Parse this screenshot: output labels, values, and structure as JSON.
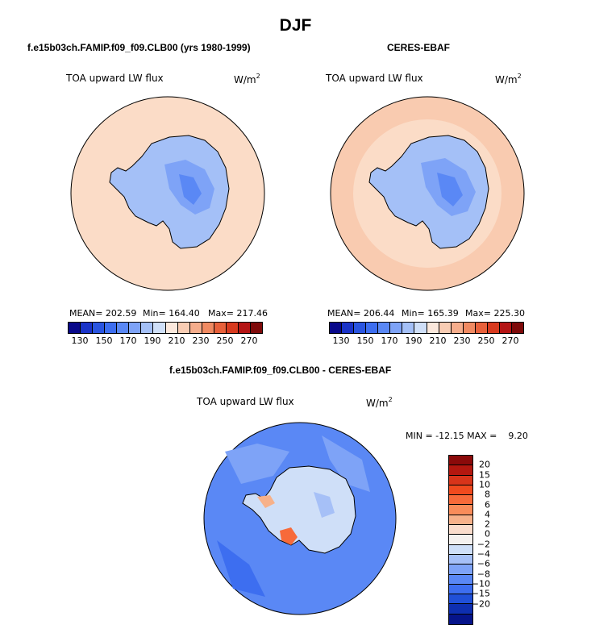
{
  "title": "DJF",
  "panels": {
    "model": {
      "subtitle": "f.e15b03ch.FAMIP.f09_f09.CLB00 (yrs 1980-1999)",
      "var_label": "TOA upward LW flux",
      "units": "W/m",
      "units_exp": "2",
      "mean_label": "MEAN= 202.59",
      "min_label": "Min= 164.40",
      "max_label": "Max= 217.46"
    },
    "obs": {
      "subtitle": "CERES-EBAF",
      "var_label": "TOA upward LW flux",
      "units": "W/m",
      "units_exp": "2",
      "mean_label": "MEAN= 206.44",
      "min_label": "Min= 165.39",
      "max_label": "Max= 225.30"
    },
    "diff": {
      "subtitle": "f.e15b03ch.FAMIP.f09_f09.CLB00 - CERES-EBAF",
      "var_label": "TOA upward LW flux",
      "units": "W/m",
      "units_exp": "2",
      "minmax_label": "MIN = -12.15 MAX =    9.20"
    }
  },
  "colorbar_abs": {
    "tick_labels": [
      "130",
      "150",
      "170",
      "190",
      "210",
      "230",
      "250",
      "270"
    ],
    "colors": [
      "#08088a",
      "#1a33c8",
      "#2a55e0",
      "#3d6ef0",
      "#5a88f5",
      "#7ea3f7",
      "#a4c0f7",
      "#cfdff8",
      "#fbe8dc",
      "#f9cdb4",
      "#f5ad8c",
      "#f08a62",
      "#e8613b",
      "#d83a1f",
      "#b41414",
      "#7e0a0a"
    ]
  },
  "colorbar_diff": {
    "levels": [
      "20",
      "15",
      "10",
      "8",
      "6",
      "4",
      "2",
      "0",
      "−2",
      "−4",
      "−6",
      "−8",
      "−10",
      "−15",
      "−20"
    ],
    "colors": [
      "#8b0a0a",
      "#b4170f",
      "#d8341a",
      "#f04a1e",
      "#f76a3a",
      "#f98c5a",
      "#f7b18a",
      "#fadccc",
      "#f5f1ef",
      "#cfdff8",
      "#a6c0f7",
      "#7ea3f7",
      "#5a88f5",
      "#3d6ef0",
      "#2050d8",
      "#0e2fb0",
      "#06148a"
    ]
  },
  "maps": {
    "model_ocean": "#fbdcc7",
    "obs_ocean": "#f9cbb0",
    "diff_ocean": "#5a88f5"
  }
}
